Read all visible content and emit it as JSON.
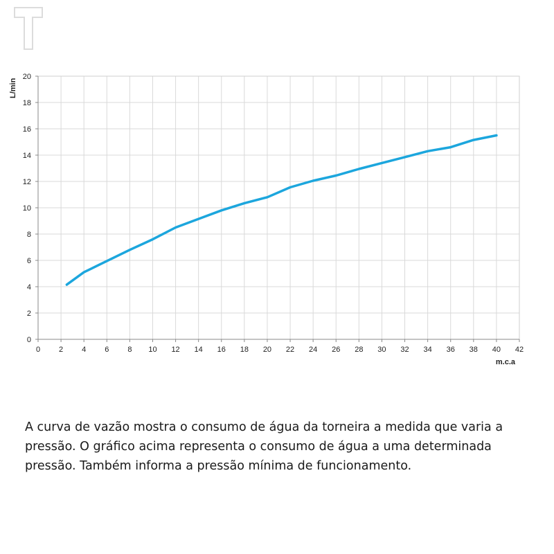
{
  "caption": "A curva de vazão mostra o consumo de água da torneira a medida que varia a pressão. O gráfico acima representa o consumo de água a uma determinada pressão. Também informa a pressão mínima de funcionamento.",
  "logo": {
    "icon": "t-logo-icon",
    "color": "#dcdcdc"
  },
  "chart_data": {
    "type": "line",
    "title": "",
    "xlabel": "m.c.a",
    "ylabel": "L/min",
    "xlim": [
      0,
      42
    ],
    "ylim": [
      0,
      20
    ],
    "x_ticks": [
      0,
      2,
      4,
      6,
      8,
      10,
      12,
      14,
      16,
      18,
      20,
      22,
      24,
      26,
      28,
      30,
      32,
      34,
      36,
      38,
      40,
      42
    ],
    "y_ticks": [
      0,
      2,
      4,
      6,
      8,
      10,
      12,
      14,
      16,
      18,
      20
    ],
    "grid": true,
    "line_color": "#1ca6dd",
    "series": [
      {
        "x": [
          2.5,
          4,
          6,
          8,
          10,
          12,
          14,
          16,
          18,
          20,
          22,
          24,
          26,
          28,
          30,
          32,
          34,
          36,
          38,
          40
        ],
        "values": [
          4.15,
          5.1,
          5.95,
          6.8,
          7.6,
          8.5,
          9.15,
          9.8,
          10.35,
          10.8,
          11.55,
          12.05,
          12.45,
          12.95,
          13.4,
          13.85,
          14.3,
          14.6,
          15.15,
          15.5
        ]
      }
    ]
  }
}
